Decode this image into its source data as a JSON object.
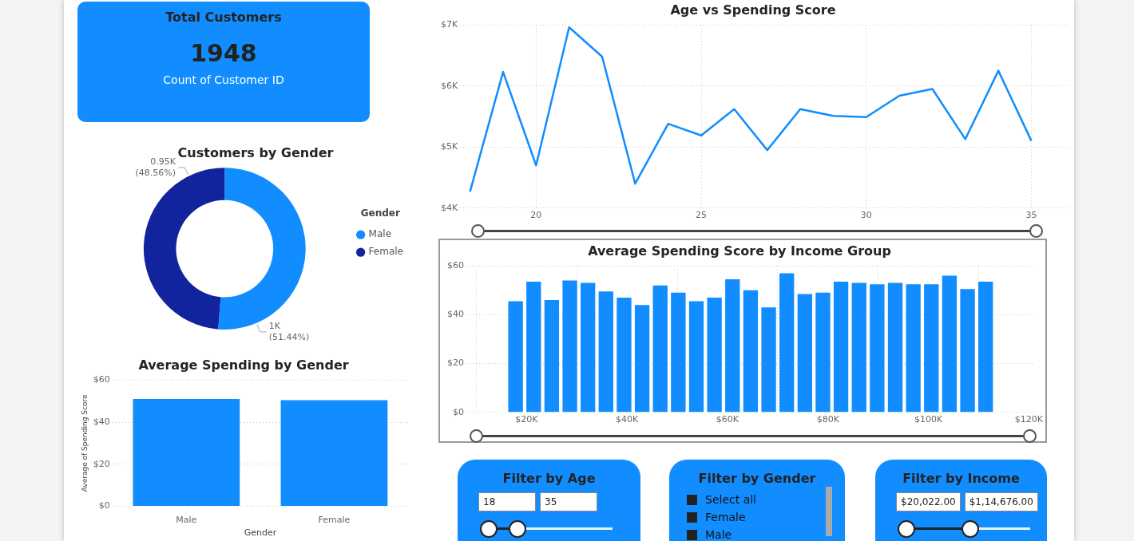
{
  "chart_data": [
    {
      "type": "other",
      "title": "Total Customers",
      "annotations": [
        "1948"
      ],
      "subtitle": "Count of Customer ID"
    },
    {
      "type": "line",
      "title": "Age vs Spending Score",
      "x": [
        18,
        19,
        20,
        21,
        22,
        23,
        24,
        25,
        26,
        27,
        28,
        29,
        30,
        31,
        32,
        33,
        34,
        35
      ],
      "values": [
        4270,
        6230,
        4700,
        6960,
        6480,
        4400,
        5380,
        5190,
        5620,
        4950,
        5620,
        5510,
        5490,
        5840,
        5950,
        5130,
        6250,
        5100
      ],
      "color": "#118dff",
      "marker": "none",
      "xlim": [
        17.7,
        36.1
      ],
      "xticks": [
        20,
        25,
        30,
        35
      ],
      "ylim": [
        4000,
        7000
      ],
      "yticks": [
        {
          "value": 4000,
          "label": "$4K"
        },
        {
          "value": 5000,
          "label": "$5K"
        },
        {
          "value": 6000,
          "label": "$6K"
        },
        {
          "value": 7000,
          "label": "$7K"
        }
      ],
      "grid": true
    },
    {
      "type": "donut",
      "title": "Customers by Gender",
      "categories": [
        "Male",
        "Female"
      ],
      "values": [
        1000,
        950
      ],
      "colors": [
        "#118dff",
        "#12239e"
      ],
      "value_labels": [
        "1K (51.44%)",
        "0.95K (48.56%)"
      ],
      "legend": "right",
      "legend_title": "Gender"
    },
    {
      "type": "bar",
      "title": "Average Spending Score by Income Group",
      "x": [
        17800,
        21400,
        25000,
        28600,
        32200,
        35800,
        39400,
        43000,
        46600,
        50200,
        53800,
        57400,
        61000,
        64600,
        68200,
        71800,
        75400,
        79000,
        82600,
        86200,
        89800,
        93400,
        97000,
        100600,
        104200,
        107800,
        111400
      ],
      "values": [
        45.5,
        53.5,
        46,
        54,
        53,
        49.5,
        47,
        44,
        52,
        49,
        45.5,
        47,
        54.5,
        50,
        43,
        57,
        48.5,
        49,
        53.5,
        53,
        52.5,
        53,
        52.5,
        52.5,
        56,
        50.5,
        53.5
      ],
      "color": "#118dff",
      "xlim": [
        8000,
        121000
      ],
      "xticks": [
        {
          "value": 20000,
          "label": "$20K"
        },
        {
          "value": 40000,
          "label": "$40K"
        },
        {
          "value": 60000,
          "label": "$60K"
        },
        {
          "value": 80000,
          "label": "$80K"
        },
        {
          "value": 100000,
          "label": "$100K"
        },
        {
          "value": 120000,
          "label": "$120K"
        }
      ],
      "ylim": [
        0,
        60
      ],
      "yticks": [
        {
          "value": 0,
          "label": "$0"
        },
        {
          "value": 20,
          "label": "$20"
        },
        {
          "value": 40,
          "label": "$40"
        },
        {
          "value": 60,
          "label": "$60"
        }
      ],
      "grid": true
    },
    {
      "type": "bar",
      "title": "Average Spending by Gender",
      "categories": [
        "Male",
        "Female"
      ],
      "values": [
        51,
        50.4
      ],
      "color": "#118dff",
      "xlabel": "Gender",
      "ylabel": "Average of Spending Score",
      "ylim": [
        0,
        60
      ],
      "yticks": [
        {
          "value": 0,
          "label": "$0"
        },
        {
          "value": 20,
          "label": "$20"
        },
        {
          "value": 40,
          "label": "$40"
        },
        {
          "value": 60,
          "label": "$60"
        }
      ],
      "grid": "y"
    },
    {
      "type": "other",
      "title": "Filter by Age",
      "annotations": [
        "18",
        "35"
      ]
    },
    {
      "type": "other",
      "title": "Filter by Gender",
      "annotations": [
        "Select all",
        "Female",
        "Male"
      ]
    },
    {
      "type": "other",
      "title": "Filter by Income",
      "annotations": [
        "$20,022.00",
        "$1,14,676.00"
      ]
    }
  ]
}
